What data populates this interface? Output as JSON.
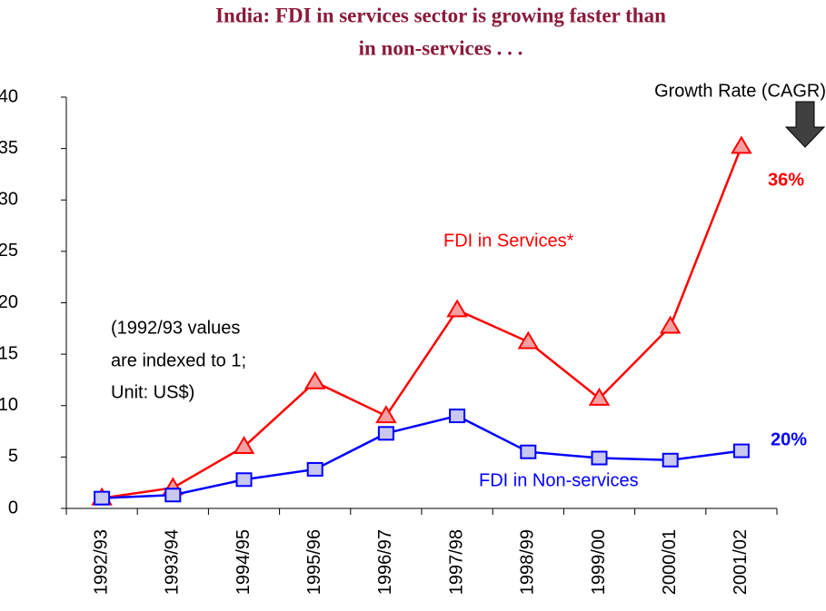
{
  "chart_data": {
    "type": "line",
    "title": [
      "India: FDI in services sector is growing faster than",
      "in non-services . . ."
    ],
    "categories": [
      "1992/93",
      "1993/94",
      "1994/95",
      "1995/96",
      "1996/97",
      "1997/98",
      "1998/99",
      "1999/00",
      "2000/01",
      "2001/02"
    ],
    "series": [
      {
        "name": "FDI  in Services*",
        "color": "#ff0000",
        "marker": "triangle",
        "marker_fill": "#f4a0a0",
        "growth_label": "36%",
        "values": [
          1,
          2,
          6,
          12.3,
          9,
          19.3,
          16.2,
          10.7,
          17.7,
          35.2
        ]
      },
      {
        "name": "FDI in Non-services",
        "color": "#0000ff",
        "marker": "square",
        "marker_fill": "#c8c8f0",
        "growth_label": "20%",
        "values": [
          1,
          1.3,
          2.8,
          3.8,
          7.3,
          9,
          5.5,
          4.9,
          4.7,
          5.6
        ]
      }
    ],
    "ylim": [
      0,
      40
    ],
    "yticks": [
      0,
      5,
      10,
      15,
      20,
      25,
      30,
      35,
      40
    ],
    "annotations": {
      "growth_header": "Growth Rate (CAGR)",
      "note": [
        "(1992/93 values",
        "are indexed to 1;",
        "Unit: US$)"
      ]
    }
  }
}
